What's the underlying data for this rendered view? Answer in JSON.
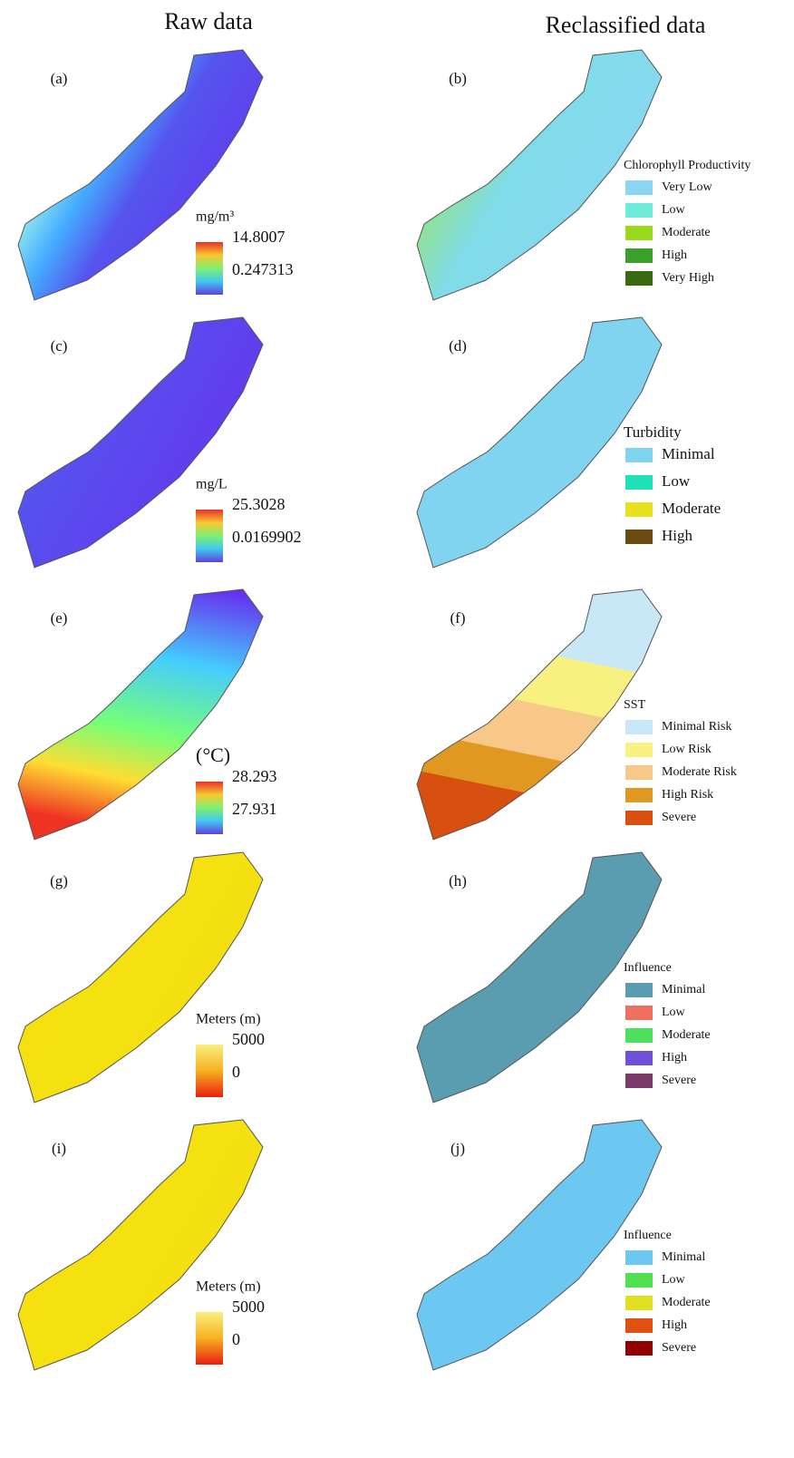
{
  "columns": [
    "Raw data",
    "Reclassified data"
  ],
  "rows": [
    {
      "raw": {
        "label": "(a)",
        "unit": "mg/m³",
        "max": "14.8007",
        "min": "0.247313",
        "colorbar": [
          "#e8322a",
          "#f8c830",
          "#7ff070",
          "#40c8f0",
          "#6040e0"
        ]
      },
      "reclass": {
        "label": "(b)",
        "title": "Chlorophyll Productivity",
        "items": [
          {
            "label": "Very Low",
            "color": "#8ad6f2"
          },
          {
            "label": "Low",
            "color": "#70ecdc"
          },
          {
            "label": "Moderate",
            "color": "#9ad81a"
          },
          {
            "label": "High",
            "color": "#3aa02a"
          },
          {
            "label": "Very High",
            "color": "#3a6a10"
          }
        ]
      }
    },
    {
      "raw": {
        "label": "(c)",
        "unit": "mg/L",
        "max": "25.3028",
        "min": "0.0169902",
        "colorbar": [
          "#e8322a",
          "#f8c830",
          "#7ff070",
          "#40c8f0",
          "#6040e0"
        ]
      },
      "reclass": {
        "label": "(d)",
        "title": "Turbidity",
        "items": [
          {
            "label": "Minimal",
            "color": "#80d4f0"
          },
          {
            "label": "Low",
            "color": "#20e0b8"
          },
          {
            "label": "Moderate",
            "color": "#e8e020"
          },
          {
            "label": "High",
            "color": "#6a4a10"
          }
        ]
      }
    },
    {
      "raw": {
        "label": "(e)",
        "unit": "(°C)",
        "max": "28.293",
        "min": "27.931",
        "colorbar": [
          "#e8322a",
          "#f8c830",
          "#7ff070",
          "#40c8f0",
          "#6040e0"
        ]
      },
      "reclass": {
        "label": "(f)",
        "title": "SST",
        "items": [
          {
            "label": "Minimal Risk",
            "color": "#c8e8f8"
          },
          {
            "label": "Low Risk",
            "color": "#f8f080"
          },
          {
            "label": "Moderate Risk",
            "color": "#f8c888"
          },
          {
            "label": "High Risk",
            "color": "#e09820"
          },
          {
            "label": "Severe",
            "color": "#d85010"
          }
        ]
      }
    },
    {
      "raw": {
        "label": "(g)",
        "unit": "Meters (m)",
        "max": "5000",
        "min": "0",
        "colorbar": [
          "#f8f080",
          "#f8b020",
          "#e82010"
        ]
      },
      "reclass": {
        "label": "(h)",
        "title": "Influence",
        "items": [
          {
            "label": "Minimal",
            "color": "#5a9cb0"
          },
          {
            "label": "Low",
            "color": "#f07060"
          },
          {
            "label": "Moderate",
            "color": "#50e060"
          },
          {
            "label": "High",
            "color": "#7050d8"
          },
          {
            "label": "Severe",
            "color": "#7a3a6a"
          }
        ]
      }
    },
    {
      "raw": {
        "label": "(i)",
        "unit": "Meters (m)",
        "max": "5000",
        "min": "0",
        "colorbar": [
          "#f8f080",
          "#f8b020",
          "#e82010"
        ]
      },
      "reclass": {
        "label": "(j)",
        "title": "Influence",
        "items": [
          {
            "label": "Minimal",
            "color": "#6cc8f0"
          },
          {
            "label": "Low",
            "color": "#50e050"
          },
          {
            "label": "Moderate",
            "color": "#e0e020"
          },
          {
            "label": "High",
            "color": "#e05010"
          },
          {
            "label": "Severe",
            "color": "#900000"
          }
        ]
      }
    }
  ]
}
